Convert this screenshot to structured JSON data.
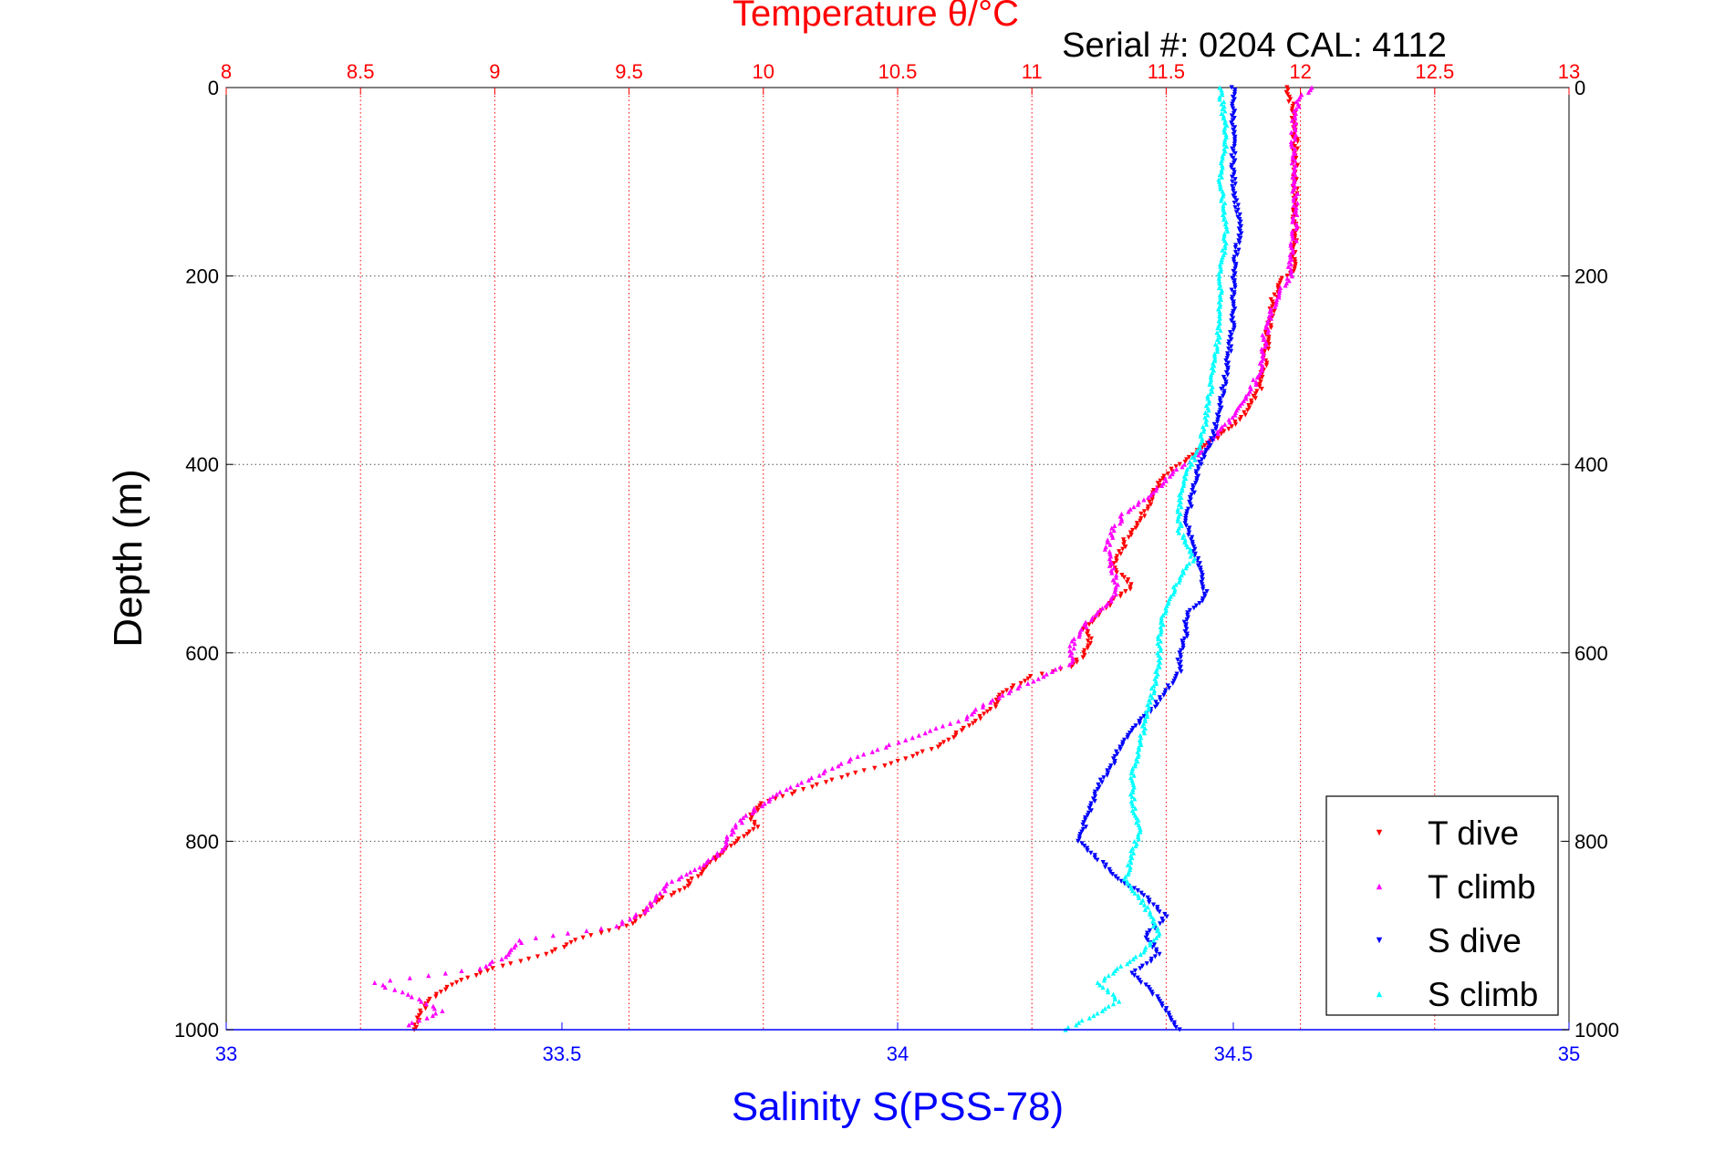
{
  "chart_data": {
    "type": "scatter",
    "title": "Temperature θ/°C",
    "subtitle": "Serial #: 0204  CAL: 4112",
    "xlabel": "Salinity S(PSS-78)",
    "ylabel": "Depth (m)",
    "top_axis": {
      "ticks": [
        "8",
        "8.5",
        "9",
        "9.5",
        "10",
        "10.5",
        "11",
        "11.5",
        "12",
        "12.5",
        "13"
      ],
      "range": [
        8,
        13
      ],
      "color": "#ff0000"
    },
    "bottom_axis": {
      "ticks": [
        "33",
        "33.5",
        "34",
        "34.5",
        "35"
      ],
      "range": [
        33,
        35
      ],
      "color": "#0000ff"
    },
    "left_axis": {
      "ticks": [
        "0",
        "200",
        "400",
        "600",
        "800",
        "1000"
      ],
      "range": [
        0,
        1000
      ],
      "inverted": true
    },
    "right_axis": {
      "ticks": [
        "0",
        "200",
        "400",
        "600",
        "800",
        "1000"
      ]
    },
    "grid": true,
    "legend_position": "bottom-right",
    "series": [
      {
        "name": "T dive",
        "axis": "top",
        "color": "#ff0000",
        "marker": "triangle-down",
        "depth": [
          0,
          20,
          40,
          80,
          120,
          160,
          195,
          205,
          225,
          260,
          290,
          320,
          345,
          365,
          380,
          390,
          400,
          415,
          430,
          445,
          460,
          480,
          500,
          510,
          520,
          530,
          545,
          560,
          575,
          590,
          600,
          615,
          625,
          640,
          660,
          680,
          700,
          720,
          735,
          745,
          760,
          772,
          785,
          800,
          830,
          850,
          865,
          890,
          905,
          920,
          935,
          950,
          960,
          970,
          985,
          1000
        ],
        "values": [
          11.95,
          11.97,
          11.98,
          11.98,
          11.98,
          11.98,
          11.97,
          11.93,
          11.9,
          11.88,
          11.87,
          11.85,
          11.8,
          11.72,
          11.65,
          11.6,
          11.55,
          11.48,
          11.45,
          11.43,
          11.4,
          11.35,
          11.32,
          11.3,
          11.35,
          11.37,
          11.3,
          11.25,
          11.2,
          11.22,
          11.2,
          11.15,
          11.0,
          10.9,
          10.85,
          10.75,
          10.65,
          10.45,
          10.25,
          10.15,
          10.0,
          9.95,
          9.98,
          9.9,
          9.78,
          9.7,
          9.6,
          9.5,
          9.3,
          9.2,
          9.0,
          8.85,
          8.8,
          8.75,
          8.72,
          8.7
        ]
      },
      {
        "name": "T climb",
        "axis": "top",
        "color": "#ff00ff",
        "marker": "triangle-up",
        "depth": [
          0,
          10,
          30,
          60,
          100,
          150,
          200,
          230,
          260,
          300,
          330,
          350,
          365,
          380,
          395,
          410,
          430,
          450,
          470,
          490,
          510,
          530,
          550,
          570,
          590,
          610,
          630,
          650,
          670,
          690,
          710,
          730,
          750,
          770,
          790,
          810,
          830,
          845,
          860,
          875,
          890,
          905,
          920,
          935,
          950,
          965,
          980,
          995
        ],
        "values": [
          12.05,
          12.0,
          11.98,
          11.97,
          11.98,
          11.98,
          11.96,
          11.9,
          11.87,
          11.85,
          11.8,
          11.75,
          11.7,
          11.65,
          11.6,
          11.52,
          11.45,
          11.35,
          11.3,
          11.28,
          11.3,
          11.32,
          11.28,
          11.2,
          11.15,
          11.15,
          11.0,
          10.85,
          10.75,
          10.55,
          10.35,
          10.2,
          10.05,
          9.95,
          9.88,
          9.85,
          9.75,
          9.65,
          9.6,
          9.55,
          9.45,
          9.1,
          9.05,
          8.95,
          8.55,
          8.7,
          8.8,
          8.68
        ]
      },
      {
        "name": "S dive",
        "axis": "bottom",
        "color": "#0000ff",
        "marker": "triangle-down",
        "depth": [
          0,
          50,
          100,
          150,
          200,
          250,
          300,
          340,
          370,
          400,
          430,
          460,
          490,
          510,
          540,
          560,
          580,
          600,
          620,
          640,
          660,
          680,
          700,
          720,
          740,
          760,
          780,
          800,
          820,
          840,
          860,
          880,
          900,
          920,
          940,
          960,
          980,
          1000
        ],
        "values": [
          34.5,
          34.5,
          34.5,
          34.51,
          34.5,
          34.5,
          34.49,
          34.48,
          34.47,
          34.45,
          34.44,
          34.43,
          34.44,
          34.45,
          34.46,
          34.43,
          34.43,
          34.42,
          34.42,
          34.4,
          34.38,
          34.35,
          34.33,
          34.32,
          34.3,
          34.29,
          34.28,
          34.27,
          34.3,
          34.33,
          34.37,
          34.4,
          34.37,
          34.39,
          34.35,
          34.38,
          34.4,
          34.42
        ]
      },
      {
        "name": "S climb",
        "axis": "bottom",
        "color": "#00ffff",
        "marker": "triangle-up",
        "depth": [
          0,
          50,
          100,
          150,
          200,
          250,
          300,
          350,
          380,
          410,
          440,
          470,
          500,
          520,
          550,
          580,
          610,
          640,
          670,
          700,
          730,
          760,
          790,
          810,
          840,
          870,
          900,
          920,
          950,
          970,
          1000
        ],
        "values": [
          34.48,
          34.49,
          34.48,
          34.49,
          34.48,
          34.48,
          34.47,
          34.46,
          34.45,
          34.43,
          34.42,
          34.42,
          34.44,
          34.42,
          34.4,
          34.39,
          34.39,
          34.38,
          34.37,
          34.36,
          34.35,
          34.35,
          34.36,
          34.35,
          34.34,
          34.37,
          34.39,
          34.36,
          34.3,
          34.33,
          34.25
        ]
      }
    ]
  }
}
